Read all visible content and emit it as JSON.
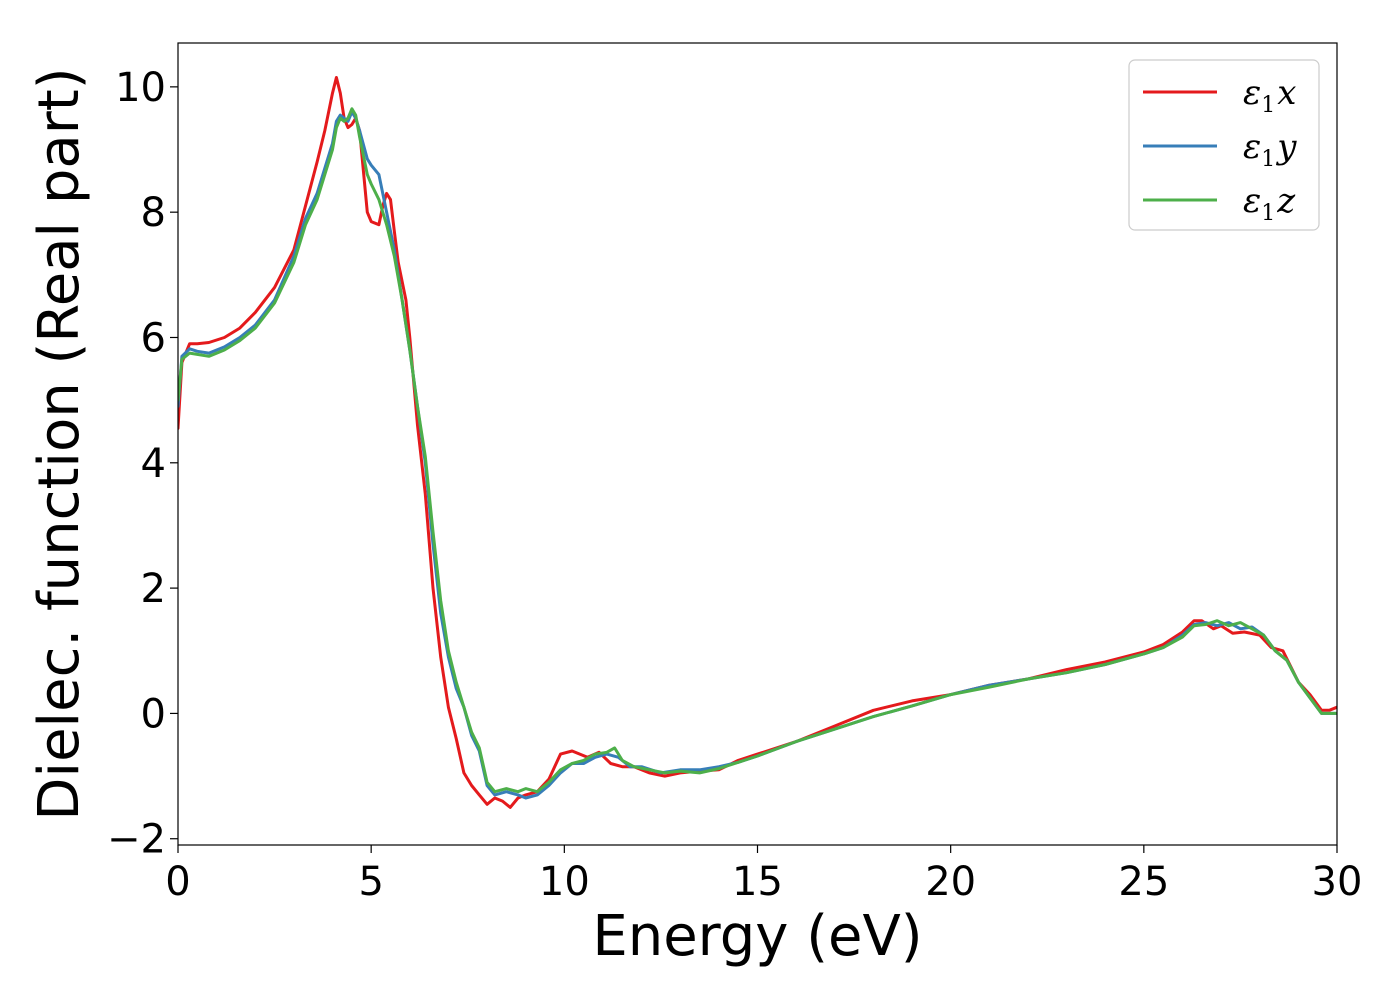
{
  "chart_data": {
    "type": "line",
    "title": "",
    "xlabel": "Energy (eV)",
    "ylabel": "Dielec. function (Real part)",
    "xlim": [
      0,
      30
    ],
    "ylim": [
      -2.1,
      10.7
    ],
    "xticks": [
      "0",
      "5",
      "10",
      "15",
      "20",
      "25",
      "30"
    ],
    "xtick_values": [
      0,
      5,
      10,
      15,
      20,
      25,
      30
    ],
    "yticks": [
      "−2",
      "0",
      "2",
      "4",
      "6",
      "8",
      "10"
    ],
    "ytick_values": [
      -2,
      0,
      2,
      4,
      6,
      8,
      10
    ],
    "grid": false,
    "legend_position": "top-right",
    "series": [
      {
        "name": "ε₁x",
        "legend_main": "ε",
        "legend_sub": "1",
        "legend_var": "x",
        "color": "#e41a1c",
        "x": [
          0,
          0.1,
          0.3,
          0.5,
          0.8,
          1.2,
          1.6,
          2.0,
          2.5,
          3.0,
          3.3,
          3.6,
          3.8,
          4.0,
          4.1,
          4.2,
          4.3,
          4.4,
          4.5,
          4.6,
          4.7,
          4.9,
          5.0,
          5.2,
          5.3,
          5.4,
          5.5,
          5.6,
          5.7,
          5.9,
          6.0,
          6.2,
          6.4,
          6.6,
          6.8,
          7.0,
          7.2,
          7.4,
          7.6,
          7.8,
          8.0,
          8.2,
          8.4,
          8.6,
          8.8,
          9.0,
          9.3,
          9.6,
          9.9,
          10.2,
          10.4,
          10.6,
          10.9,
          11.2,
          11.5,
          11.8,
          12.2,
          12.6,
          13.0,
          13.5,
          14.0,
          14.5,
          15.0,
          16.0,
          17.0,
          18.0,
          19.0,
          20.0,
          21.0,
          22.0,
          23.0,
          24.0,
          25.0,
          25.5,
          26.0,
          26.3,
          26.5,
          26.8,
          27.0,
          27.3,
          27.6,
          28.0,
          28.3,
          28.6,
          29.0,
          29.3,
          29.6,
          29.8,
          30.0
        ],
        "y": [
          4.55,
          5.6,
          5.9,
          5.9,
          5.92,
          6.0,
          6.15,
          6.4,
          6.8,
          7.4,
          8.1,
          8.8,
          9.3,
          9.9,
          10.15,
          9.9,
          9.5,
          9.35,
          9.4,
          9.5,
          9.3,
          8.0,
          7.85,
          7.8,
          8.1,
          8.3,
          8.2,
          7.7,
          7.2,
          6.6,
          6.0,
          4.6,
          3.5,
          2.0,
          0.9,
          0.1,
          -0.4,
          -0.95,
          -1.15,
          -1.3,
          -1.45,
          -1.35,
          -1.4,
          -1.5,
          -1.35,
          -1.3,
          -1.25,
          -1.05,
          -0.65,
          -0.6,
          -0.65,
          -0.7,
          -0.62,
          -0.8,
          -0.85,
          -0.85,
          -0.95,
          -1.0,
          -0.95,
          -0.92,
          -0.9,
          -0.75,
          -0.65,
          -0.45,
          -0.2,
          0.05,
          0.2,
          0.3,
          0.45,
          0.55,
          0.7,
          0.82,
          0.98,
          1.1,
          1.3,
          1.48,
          1.48,
          1.35,
          1.4,
          1.28,
          1.3,
          1.25,
          1.05,
          1.0,
          0.5,
          0.3,
          0.05,
          0.05,
          0.1
        ]
      },
      {
        "name": "ε₁y",
        "legend_main": "ε",
        "legend_sub": "1",
        "legend_var": "y",
        "color": "#377eb8",
        "x": [
          0,
          0.1,
          0.3,
          0.5,
          0.8,
          1.2,
          1.6,
          2.0,
          2.5,
          3.0,
          3.3,
          3.6,
          3.8,
          4.0,
          4.1,
          4.2,
          4.3,
          4.4,
          4.5,
          4.6,
          4.7,
          4.9,
          5.0,
          5.2,
          5.4,
          5.6,
          5.8,
          6.0,
          6.2,
          6.4,
          6.6,
          6.8,
          7.0,
          7.2,
          7.4,
          7.6,
          7.8,
          8.0,
          8.2,
          8.5,
          8.8,
          9.0,
          9.3,
          9.6,
          9.9,
          10.2,
          10.5,
          10.8,
          11.1,
          11.4,
          11.7,
          12.0,
          12.5,
          13.0,
          13.5,
          14.0,
          14.5,
          15.0,
          16.0,
          17.0,
          18.0,
          19.0,
          20.0,
          21.0,
          22.0,
          23.0,
          24.0,
          25.0,
          25.5,
          26.0,
          26.3,
          26.6,
          26.9,
          27.2,
          27.5,
          27.8,
          28.1,
          28.4,
          28.7,
          29.0,
          29.3,
          29.6,
          29.8,
          30.0
        ],
        "y": [
          4.9,
          5.7,
          5.82,
          5.78,
          5.75,
          5.85,
          6.0,
          6.2,
          6.6,
          7.3,
          7.9,
          8.3,
          8.7,
          9.1,
          9.45,
          9.55,
          9.5,
          9.45,
          9.6,
          9.5,
          9.3,
          8.85,
          8.75,
          8.6,
          8.0,
          7.4,
          6.6,
          5.8,
          4.9,
          4.0,
          2.7,
          1.6,
          0.9,
          0.4,
          0.1,
          -0.35,
          -0.6,
          -1.15,
          -1.3,
          -1.25,
          -1.3,
          -1.35,
          -1.3,
          -1.15,
          -0.95,
          -0.8,
          -0.8,
          -0.7,
          -0.65,
          -0.7,
          -0.85,
          -0.85,
          -0.95,
          -0.9,
          -0.9,
          -0.85,
          -0.78,
          -0.68,
          -0.45,
          -0.25,
          -0.05,
          0.12,
          0.3,
          0.45,
          0.55,
          0.65,
          0.78,
          0.95,
          1.05,
          1.25,
          1.42,
          1.45,
          1.4,
          1.45,
          1.35,
          1.38,
          1.25,
          1.0,
          0.85,
          0.5,
          0.25,
          0.0,
          0.0,
          0.0
        ]
      },
      {
        "name": "ε₁z",
        "legend_main": "ε",
        "legend_sub": "1",
        "legend_var": "z",
        "color": "#4daf4a",
        "x": [
          0,
          0.1,
          0.3,
          0.5,
          0.8,
          1.2,
          1.6,
          2.0,
          2.5,
          3.0,
          3.3,
          3.6,
          3.8,
          4.0,
          4.1,
          4.2,
          4.3,
          4.4,
          4.5,
          4.6,
          4.7,
          4.9,
          5.0,
          5.2,
          5.4,
          5.6,
          5.8,
          6.0,
          6.2,
          6.4,
          6.6,
          6.8,
          7.0,
          7.2,
          7.4,
          7.6,
          7.8,
          8.0,
          8.2,
          8.5,
          8.8,
          9.0,
          9.3,
          9.6,
          9.9,
          10.2,
          10.5,
          10.8,
          11.1,
          11.3,
          11.5,
          11.8,
          12.2,
          12.6,
          13.0,
          13.5,
          14.0,
          14.5,
          15.0,
          16.0,
          17.0,
          18.0,
          19.0,
          20.0,
          21.0,
          22.0,
          23.0,
          24.0,
          25.0,
          25.5,
          26.0,
          26.3,
          26.6,
          26.9,
          27.2,
          27.5,
          27.8,
          28.1,
          28.4,
          28.7,
          29.0,
          29.3,
          29.6,
          29.8,
          30.0
        ],
        "y": [
          5.0,
          5.65,
          5.75,
          5.73,
          5.7,
          5.8,
          5.95,
          6.15,
          6.55,
          7.2,
          7.8,
          8.2,
          8.6,
          9.0,
          9.35,
          9.5,
          9.45,
          9.5,
          9.65,
          9.55,
          9.2,
          8.6,
          8.45,
          8.2,
          7.8,
          7.3,
          6.6,
          5.8,
          4.9,
          4.1,
          2.9,
          1.8,
          1.0,
          0.5,
          0.1,
          -0.3,
          -0.55,
          -1.1,
          -1.25,
          -1.2,
          -1.25,
          -1.2,
          -1.25,
          -1.1,
          -0.9,
          -0.8,
          -0.75,
          -0.65,
          -0.62,
          -0.55,
          -0.75,
          -0.85,
          -0.9,
          -0.95,
          -0.92,
          -0.95,
          -0.88,
          -0.78,
          -0.68,
          -0.45,
          -0.25,
          -0.05,
          0.12,
          0.3,
          0.42,
          0.55,
          0.65,
          0.78,
          0.95,
          1.05,
          1.22,
          1.4,
          1.42,
          1.48,
          1.4,
          1.45,
          1.35,
          1.25,
          1.0,
          0.85,
          0.5,
          0.25,
          0.0,
          0.0,
          0.0
        ]
      }
    ]
  }
}
